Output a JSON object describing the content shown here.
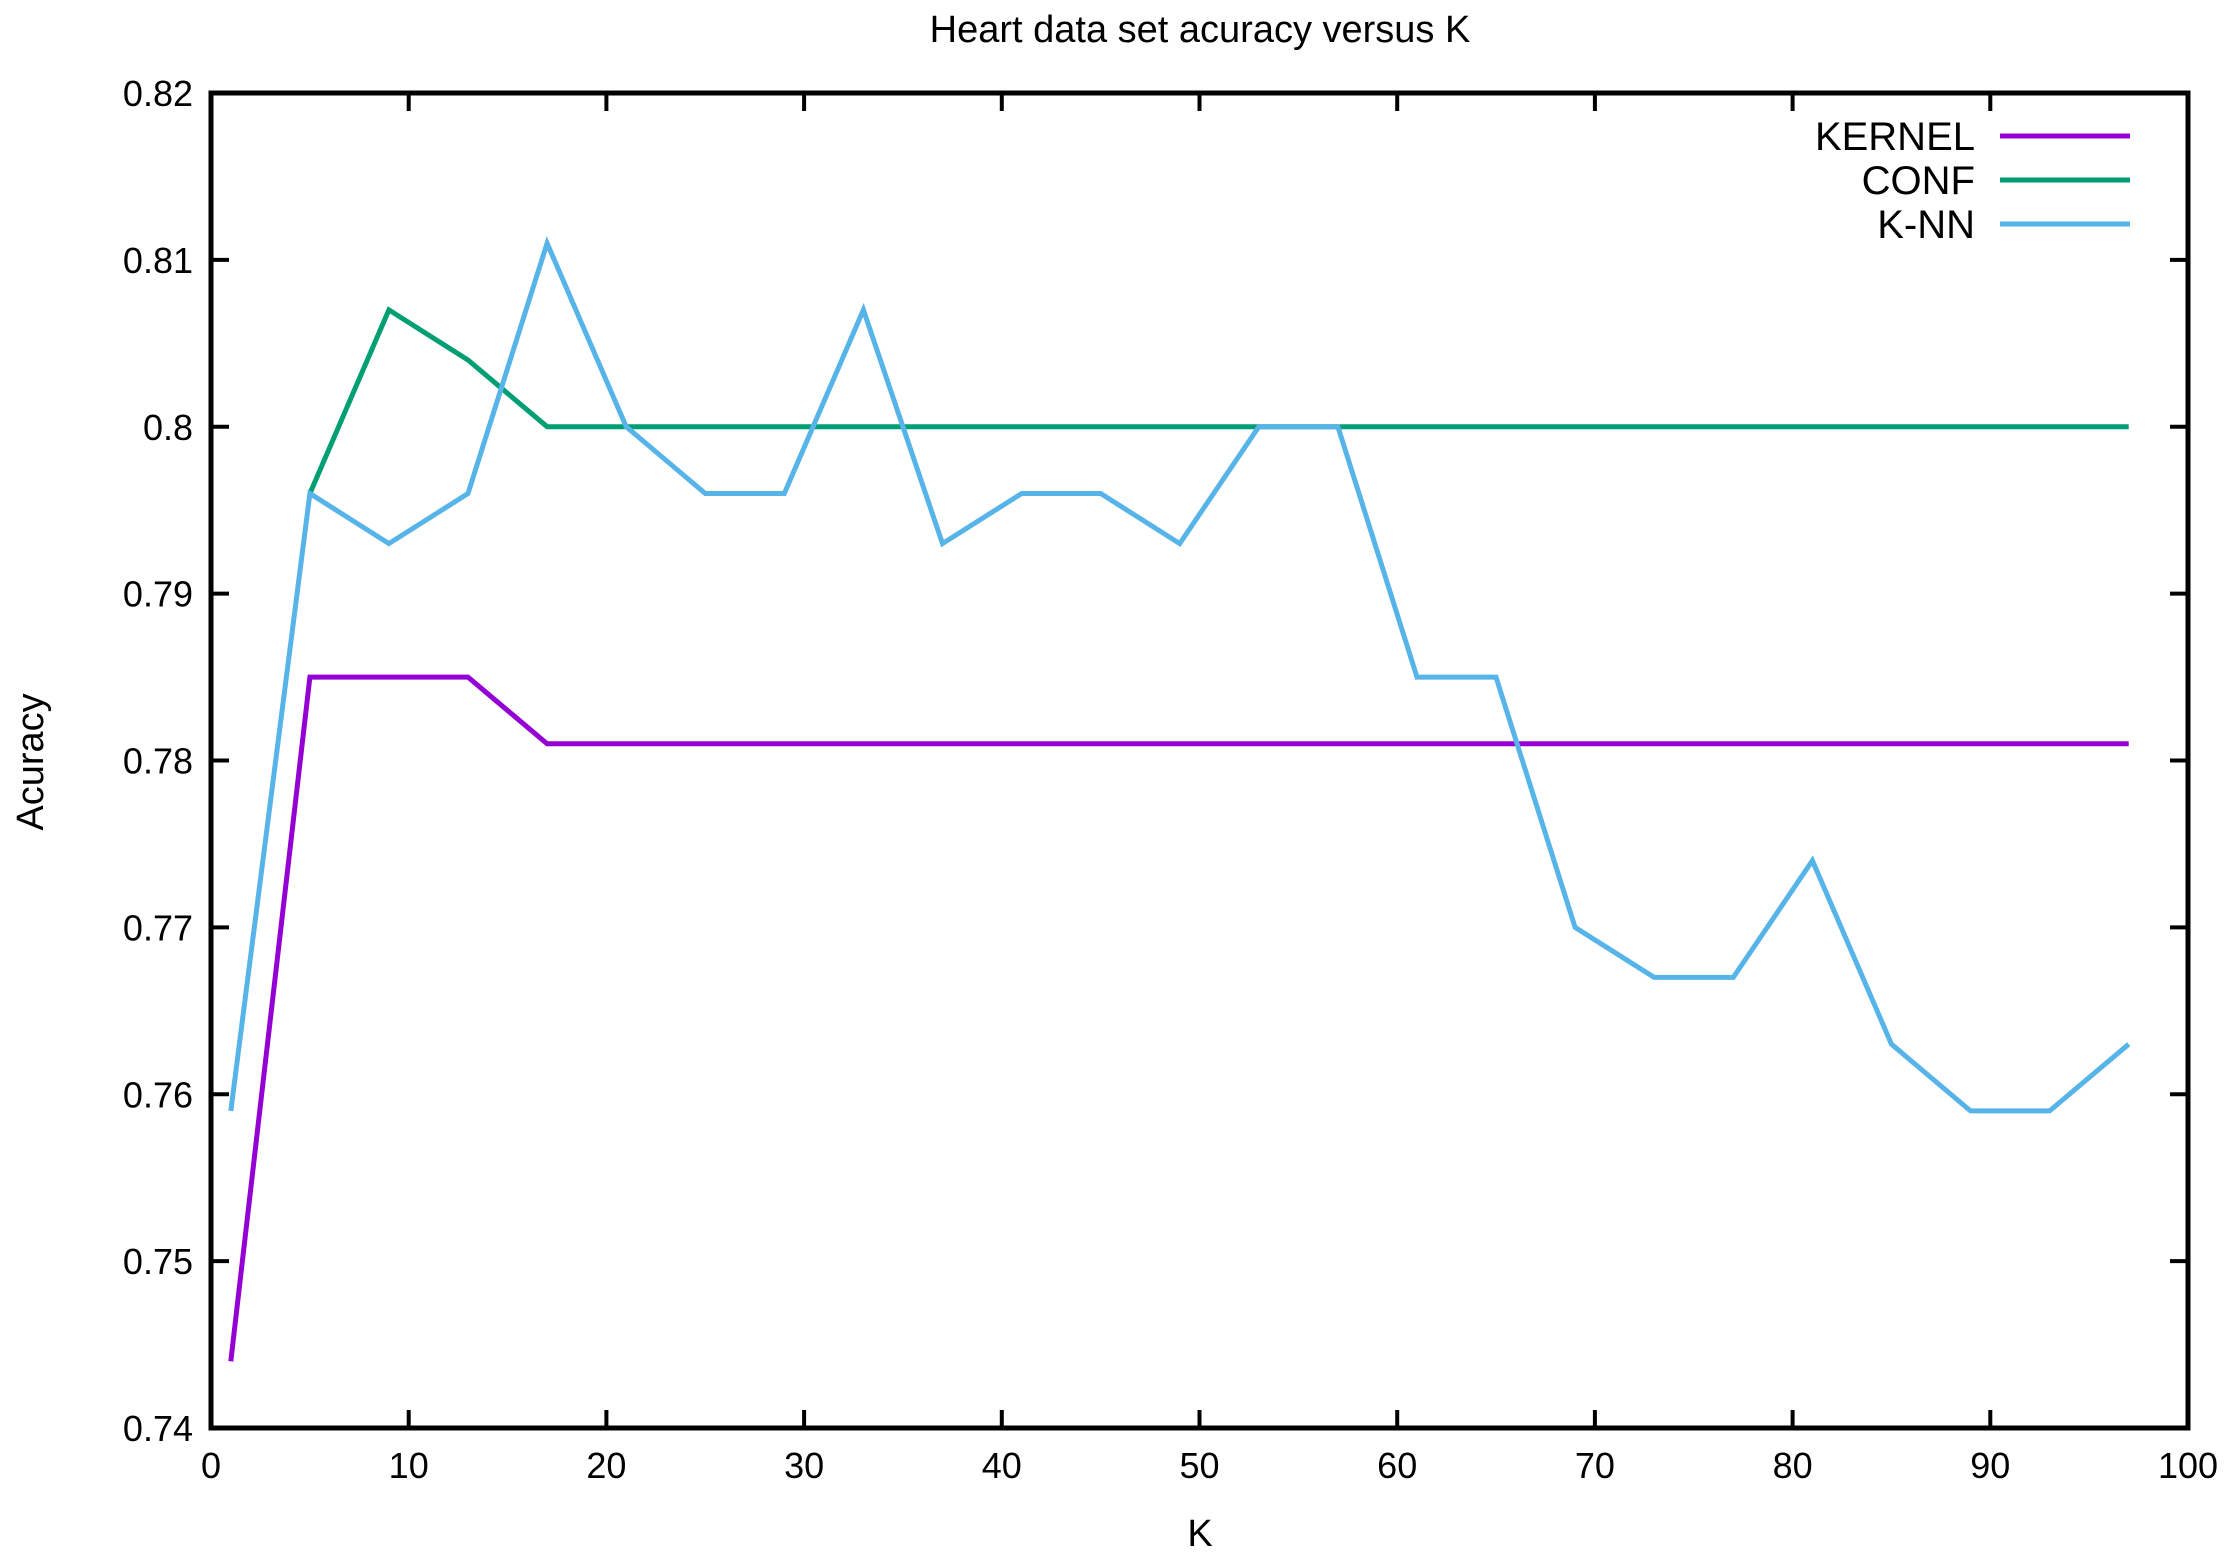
{
  "chart_data": {
    "type": "line",
    "title": "Heart data set acuracy versus K",
    "xlabel": "K",
    "ylabel": "Acuracy",
    "xlim": [
      0,
      100
    ],
    "ylim": [
      0.74,
      0.82
    ],
    "xticks": [
      0,
      10,
      20,
      30,
      40,
      50,
      60,
      70,
      80,
      90,
      100
    ],
    "yticks": [
      0.74,
      0.75,
      0.76,
      0.77,
      0.78,
      0.79,
      0.8,
      0.81,
      0.82
    ],
    "xtick_labels": [
      "0",
      "10",
      "20",
      "30",
      "40",
      "50",
      "60",
      "70",
      "80",
      "90",
      "100"
    ],
    "ytick_labels": [
      "0.74",
      "0.75",
      "0.76",
      "0.77",
      "0.78",
      "0.79",
      "0.8",
      "0.81",
      "0.82"
    ],
    "grid": false,
    "legend_position": "top-right",
    "series": [
      {
        "name": "KERNEL",
        "color": "#9400D3",
        "x": [
          1,
          5,
          9,
          13,
          17,
          21,
          25,
          29,
          33,
          37,
          41,
          45,
          49,
          53,
          57,
          61,
          65,
          69,
          73,
          77,
          81,
          85,
          89,
          93,
          97
        ],
        "y": [
          0.744,
          0.785,
          0.785,
          0.785,
          0.781,
          0.781,
          0.781,
          0.781,
          0.781,
          0.781,
          0.781,
          0.781,
          0.781,
          0.781,
          0.781,
          0.781,
          0.781,
          0.781,
          0.781,
          0.781,
          0.781,
          0.781,
          0.781,
          0.781,
          0.781
        ]
      },
      {
        "name": "CONF",
        "color": "#009E73",
        "x": [
          5,
          9,
          13,
          17,
          21,
          25,
          29,
          33,
          37,
          41,
          45,
          49,
          53,
          57,
          61,
          65,
          69,
          73,
          77,
          81,
          85,
          89,
          93,
          97
        ],
        "y": [
          0.796,
          0.807,
          0.804,
          0.8,
          0.8,
          0.8,
          0.8,
          0.8,
          0.8,
          0.8,
          0.8,
          0.8,
          0.8,
          0.8,
          0.8,
          0.8,
          0.8,
          0.8,
          0.8,
          0.8,
          0.8,
          0.8,
          0.8,
          0.8
        ]
      },
      {
        "name": "K-NN",
        "color": "#56B4E9",
        "x": [
          1,
          5,
          9,
          13,
          17,
          21,
          25,
          29,
          33,
          37,
          41,
          45,
          49,
          53,
          57,
          61,
          65,
          69,
          73,
          77,
          81,
          85,
          89,
          93,
          97
        ],
        "y": [
          0.759,
          0.796,
          0.793,
          0.796,
          0.811,
          0.8,
          0.796,
          0.796,
          0.807,
          0.793,
          0.796,
          0.796,
          0.793,
          0.8,
          0.8,
          0.785,
          0.785,
          0.77,
          0.767,
          0.767,
          0.774,
          0.763,
          0.759,
          0.759,
          0.763
        ]
      }
    ]
  }
}
